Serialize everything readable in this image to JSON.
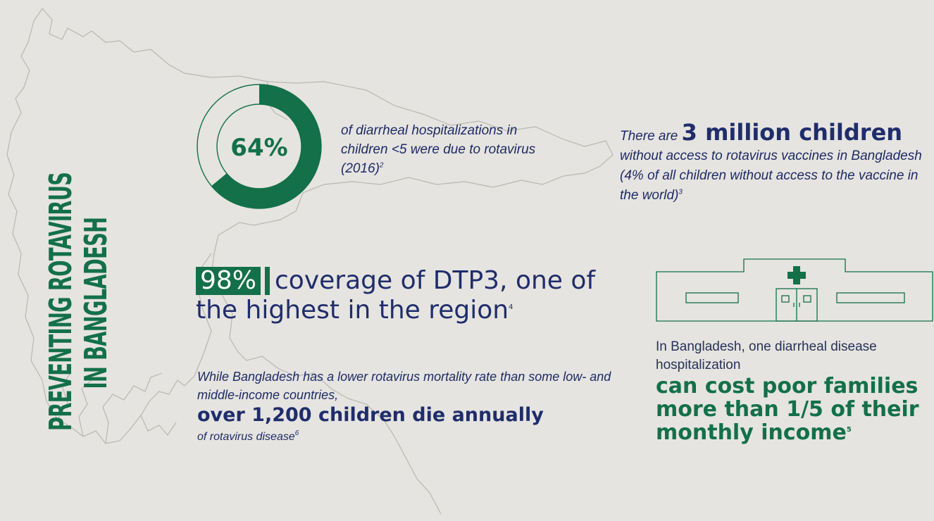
{
  "title": {
    "line1": "Preventing Rotavirus",
    "line2": "in Bangladesh"
  },
  "colors": {
    "green": "#137049",
    "navy": "#1f2d6b",
    "background": "#e6e4e0",
    "map_stroke": "#b9b7b1"
  },
  "icons": {
    "map": "bangladesh-map-outline",
    "donut": "donut-chart",
    "hospital": "hospital-building-icon",
    "cross": "medical-cross-icon"
  },
  "stat_hospitalizations": {
    "percent": "64%",
    "fraction_shown": 0.64,
    "text": "of diarrheal hospitalizations in children <5 were due to rotavirus (2016)",
    "ref": "2"
  },
  "stat_children": {
    "prefix": "There are",
    "highlight": "3 million children",
    "text": "without access to rotavirus vaccines in Bangladesh (4% of all children without access to the vaccine in the world)",
    "ref": "3"
  },
  "stat_dtp3": {
    "percent": "98%",
    "text": "coverage of DTP3, one of the highest in the region",
    "ref": "4"
  },
  "stat_mortality": {
    "intro": "While Bangladesh has a lower rotavirus mortality rate than some low- and middle-income countries,",
    "highlight": "over 1,200 children die annually",
    "tail": "of rotavirus disease",
    "ref": "6"
  },
  "stat_cost": {
    "intro": "In Bangladesh, one diarrheal disease hospitalization",
    "highlight": "can cost poor families more than 1/5 of their monthly income",
    "ref": "5"
  }
}
